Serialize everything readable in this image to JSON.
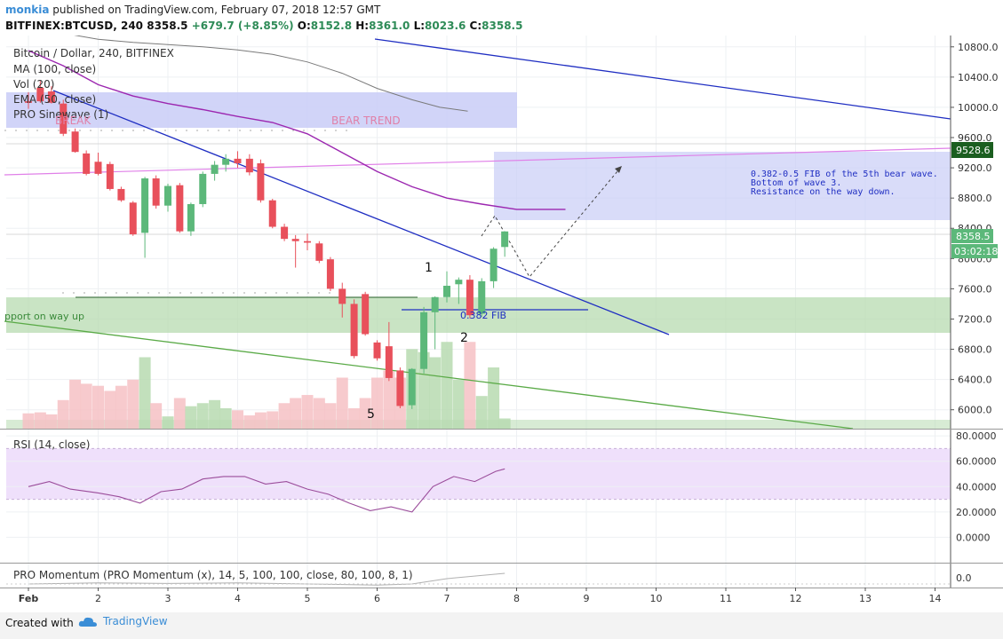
{
  "header": {
    "author": "monkia",
    "published_text": " published on TradingView.com, February 07, 2018 12:57 GMT",
    "symbol": "BITFINEX:BTCUSD, 240",
    "last": "8358.5",
    "change": "+679.7 (+8.85%)",
    "o_label": "O:",
    "o": "8152.8",
    "h_label": "H:",
    "h": "8361.0",
    "l_label": "L:",
    "l": "8023.6",
    "c_label": "C:",
    "c": "8358.5"
  },
  "legend": {
    "title": "Bitcoin / Dollar, 240, BITFINEX",
    "ma": "MA (100, close)",
    "vol": "Vol (20)",
    "ema": "EMA (50, close)",
    "sinewave": "PRO Sinewave (1)",
    "rsi": "RSI (14, close)",
    "momentum": "PRO Momentum (PRO Momentum (x), 14, 5, 100, 100, close, 80, 100, 8, 1)"
  },
  "annotations": {
    "bear_trend": "BEAR TREND",
    "break": "BREAK",
    "support": "pport on way up",
    "fib_note_1": "0.382-0.5 FIB of the 5th bear wave.",
    "fib_note_2": "Bottom of wave 3.",
    "fib_note_3": "Resistance on the way down.",
    "fib_382": "0.382 FIB",
    "wave_1": "1",
    "wave_2": "2",
    "wave_5": "5"
  },
  "price_badges": {
    "resistance": "9528.6",
    "last": "8358.5",
    "countdown": "03:02:18"
  },
  "footer": {
    "created_with": "Created with",
    "brand": "TradingView"
  },
  "colors": {
    "up": "#5cb87a",
    "down": "#e8505b",
    "ema": "#9c27b0",
    "trend_blue": "#1f2ec2",
    "support_green": "#4caf50",
    "zone_blue": "#c9cdf7",
    "zone_green": "#b7dbb0",
    "rsi_band": "#efe0fb",
    "rsi_line": "#9b4d9b"
  },
  "chart_data": {
    "type": "candlestick",
    "symbol": "BITFINEX:BTCUSD",
    "timeframe": "240",
    "x_ticks": [
      "Feb",
      "2",
      "3",
      "4",
      "5",
      "6",
      "7",
      "8",
      "9",
      "10",
      "11",
      "12",
      "13",
      "14"
    ],
    "y_ticks": [
      "6000.0",
      "6400.0",
      "6800.0",
      "7200.0",
      "7600.0",
      "8000.0",
      "8400.0",
      "8800.0",
      "9200.0",
      "9600.0",
      "10000.0",
      "10400.0",
      "10800.0"
    ],
    "ylim": [
      5750,
      10950
    ],
    "candles": [
      {
        "t": 0.0,
        "o": 10080,
        "h": 10200,
        "l": 9980,
        "c": 10060
      },
      {
        "t": 0.17,
        "o": 10260,
        "h": 10350,
        "l": 10060,
        "c": 10080
      },
      {
        "t": 0.33,
        "o": 10210,
        "h": 10280,
        "l": 10050,
        "c": 10060
      },
      {
        "t": 0.5,
        "o": 10050,
        "h": 10100,
        "l": 9620,
        "c": 9650
      },
      {
        "t": 0.67,
        "o": 9680,
        "h": 9720,
        "l": 9400,
        "c": 9410
      },
      {
        "t": 0.83,
        "o": 9390,
        "h": 9430,
        "l": 9100,
        "c": 9120
      },
      {
        "t": 1.0,
        "o": 9280,
        "h": 9400,
        "l": 9100,
        "c": 9120
      },
      {
        "t": 1.17,
        "o": 9250,
        "h": 9280,
        "l": 8900,
        "c": 8920
      },
      {
        "t": 1.33,
        "o": 8920,
        "h": 8950,
        "l": 8750,
        "c": 8770
      },
      {
        "t": 1.5,
        "o": 8740,
        "h": 8760,
        "l": 8300,
        "c": 8320
      },
      {
        "t": 1.67,
        "o": 8340,
        "h": 9080,
        "l": 8010,
        "c": 9060
      },
      {
        "t": 1.83,
        "o": 9060,
        "h": 9100,
        "l": 8660,
        "c": 8700
      },
      {
        "t": 2.0,
        "o": 8700,
        "h": 8990,
        "l": 8620,
        "c": 8960
      },
      {
        "t": 2.17,
        "o": 8970,
        "h": 9000,
        "l": 8340,
        "c": 8360
      },
      {
        "t": 2.33,
        "o": 8360,
        "h": 8740,
        "l": 8300,
        "c": 8720
      },
      {
        "t": 2.5,
        "o": 8720,
        "h": 9150,
        "l": 8680,
        "c": 9120
      },
      {
        "t": 2.67,
        "o": 9120,
        "h": 9290,
        "l": 9030,
        "c": 9240
      },
      {
        "t": 2.83,
        "o": 9240,
        "h": 9380,
        "l": 9150,
        "c": 9320
      },
      {
        "t": 3.0,
        "o": 9320,
        "h": 9420,
        "l": 9200,
        "c": 9260
      },
      {
        "t": 3.17,
        "o": 9320,
        "h": 9380,
        "l": 9100,
        "c": 9140
      },
      {
        "t": 3.33,
        "o": 9260,
        "h": 9310,
        "l": 8740,
        "c": 8770
      },
      {
        "t": 3.5,
        "o": 8770,
        "h": 8790,
        "l": 8400,
        "c": 8420
      },
      {
        "t": 3.67,
        "o": 8420,
        "h": 8460,
        "l": 8230,
        "c": 8260
      },
      {
        "t": 3.83,
        "o": 8260,
        "h": 8310,
        "l": 7880,
        "c": 8230
      },
      {
        "t": 4.0,
        "o": 8230,
        "h": 8330,
        "l": 8110,
        "c": 8210
      },
      {
        "t": 4.17,
        "o": 8200,
        "h": 8230,
        "l": 7940,
        "c": 7970
      },
      {
        "t": 4.33,
        "o": 7990,
        "h": 8020,
        "l": 7570,
        "c": 7600
      },
      {
        "t": 4.5,
        "o": 7600,
        "h": 7680,
        "l": 7220,
        "c": 7400
      },
      {
        "t": 4.67,
        "o": 7400,
        "h": 7460,
        "l": 6680,
        "c": 6710
      },
      {
        "t": 4.83,
        "o": 7530,
        "h": 7560,
        "l": 6980,
        "c": 7000
      },
      {
        "t": 5.0,
        "o": 6890,
        "h": 6920,
        "l": 6650,
        "c": 6680
      },
      {
        "t": 5.17,
        "o": 6840,
        "h": 7160,
        "l": 6380,
        "c": 6420
      },
      {
        "t": 5.33,
        "o": 6520,
        "h": 6560,
        "l": 6020,
        "c": 6050
      },
      {
        "t": 5.5,
        "o": 6060,
        "h": 6550,
        "l": 6010,
        "c": 6540
      },
      {
        "t": 5.67,
        "o": 6540,
        "h": 7360,
        "l": 6480,
        "c": 7290
      },
      {
        "t": 5.83,
        "o": 7290,
        "h": 7500,
        "l": 6800,
        "c": 7490
      },
      {
        "t": 6.0,
        "o": 7490,
        "h": 7830,
        "l": 7420,
        "c": 7640
      },
      {
        "t": 6.17,
        "o": 7660,
        "h": 7750,
        "l": 7400,
        "c": 7720
      },
      {
        "t": 6.33,
        "o": 7720,
        "h": 7780,
        "l": 7210,
        "c": 7250
      },
      {
        "t": 6.5,
        "o": 7270,
        "h": 7740,
        "l": 7230,
        "c": 7700
      },
      {
        "t": 6.67,
        "o": 7700,
        "h": 8150,
        "l": 7610,
        "c": 8130
      },
      {
        "t": 6.83,
        "o": 8152.8,
        "h": 8361.0,
        "l": 8023.6,
        "c": 8358.5
      }
    ],
    "ema_50": {
      "t": [
        0.0,
        0.5,
        1.0,
        1.5,
        2.0,
        2.5,
        3.0,
        3.5,
        4.0,
        4.5,
        5.0,
        5.5,
        6.0,
        6.5,
        7.0,
        7.7
      ],
      "v": [
        10750,
        10550,
        10300,
        10150,
        10050,
        9970,
        9880,
        9800,
        9650,
        9400,
        9150,
        8950,
        8800,
        8720,
        8650,
        8650
      ]
    },
    "ma_100": {
      "t": [
        0.0,
        0.5,
        1.0,
        1.5,
        2.0,
        2.5,
        3.0,
        3.5,
        4.0,
        4.5,
        5.0,
        5.5,
        5.9,
        6.3
      ],
      "v": [
        11050,
        10980,
        10900,
        10860,
        10830,
        10800,
        10760,
        10700,
        10600,
        10450,
        10250,
        10100,
        10000,
        9950
      ]
    },
    "volume": {
      "t": [
        0.0,
        0.17,
        0.33,
        0.5,
        0.67,
        0.83,
        1.0,
        1.17,
        1.33,
        1.5,
        1.67,
        1.83,
        2.0,
        2.17,
        2.33,
        2.5,
        2.67,
        2.83,
        3.0,
        3.17,
        3.33,
        3.5,
        3.67,
        3.83,
        4.0,
        4.17,
        4.33,
        4.5,
        4.67,
        4.83,
        5.0,
        5.17,
        5.33,
        5.5,
        5.67,
        5.83,
        6.0,
        6.17,
        6.33,
        6.5,
        6.67,
        6.83
      ],
      "v": [
        15,
        16,
        14,
        28,
        48,
        44,
        42,
        37,
        42,
        48,
        70,
        25,
        12,
        30,
        22,
        25,
        28,
        20,
        18,
        13,
        16,
        17,
        25,
        30,
        33,
        30,
        25,
        50,
        20,
        30,
        50,
        57,
        50,
        78,
        75,
        70,
        85,
        48,
        85,
        32,
        60,
        10
      ]
    },
    "rsi": {
      "ylim": [
        -20,
        85
      ],
      "t": [
        0.0,
        0.3,
        0.6,
        1.0,
        1.3,
        1.6,
        1.9,
        2.2,
        2.5,
        2.8,
        3.1,
        3.4,
        3.7,
        4.0,
        4.3,
        4.6,
        4.9,
        5.2,
        5.5,
        5.8,
        6.1,
        6.4,
        6.7,
        6.83
      ],
      "v": [
        40,
        44,
        38,
        35,
        32,
        27,
        36,
        38,
        46,
        48,
        48,
        42,
        44,
        38,
        34,
        27,
        21,
        24,
        20,
        40,
        48,
        44,
        52,
        54
      ]
    },
    "momentum": {
      "t": [
        0.0,
        1.0,
        2.0,
        3.0,
        4.0,
        5.0,
        5.5,
        6.0,
        6.83
      ],
      "v": [
        0.0,
        0.02,
        0.01,
        0.02,
        0.0,
        -0.02,
        0.0,
        0.1,
        0.2
      ]
    }
  }
}
